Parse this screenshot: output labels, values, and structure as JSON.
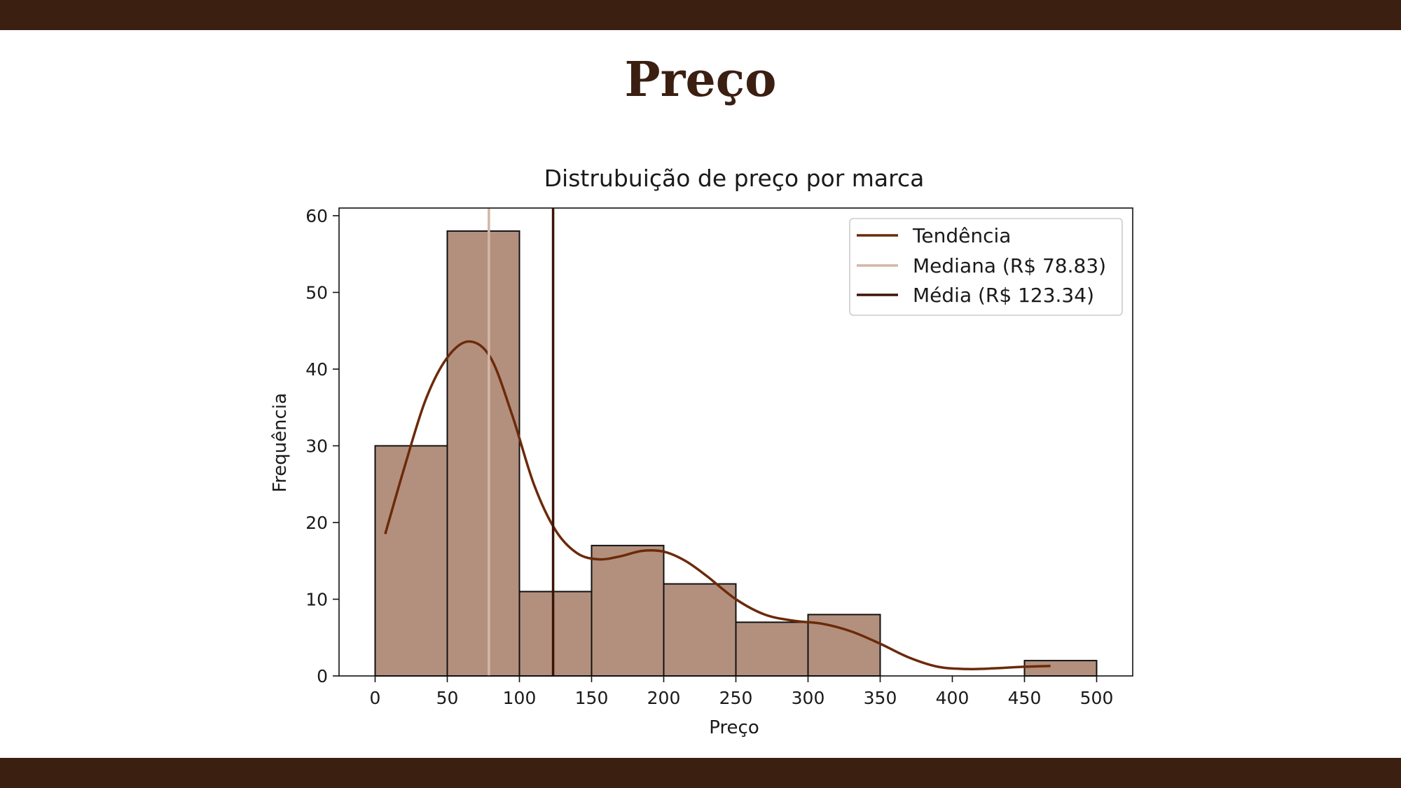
{
  "slide": {
    "title": "Preço"
  },
  "chart_data": {
    "type": "bar",
    "title": "Distrubuição de preço por marca",
    "xlabel": "Preço",
    "ylabel": "Frequência",
    "xlim": [
      -25,
      525
    ],
    "ylim": [
      0,
      61
    ],
    "xticks": [
      0,
      50,
      100,
      150,
      200,
      250,
      300,
      350,
      400,
      450,
      500
    ],
    "yticks": [
      0,
      10,
      20,
      30,
      40,
      50,
      60
    ],
    "bins": [
      {
        "start": 0,
        "end": 50,
        "count": 30
      },
      {
        "start": 50,
        "end": 100,
        "count": 58
      },
      {
        "start": 100,
        "end": 150,
        "count": 11
      },
      {
        "start": 150,
        "end": 200,
        "count": 17
      },
      {
        "start": 200,
        "end": 250,
        "count": 12
      },
      {
        "start": 250,
        "end": 300,
        "count": 7
      },
      {
        "start": 300,
        "end": 350,
        "count": 8
      },
      {
        "start": 350,
        "end": 400,
        "count": 0
      },
      {
        "start": 400,
        "end": 450,
        "count": 0
      },
      {
        "start": 450,
        "end": 500,
        "count": 2
      }
    ],
    "trend": {
      "name": "Tendência",
      "x": [
        7,
        20,
        35,
        50,
        65,
        80,
        95,
        110,
        125,
        140,
        155,
        170,
        185,
        200,
        215,
        230,
        250,
        270,
        290,
        310,
        330,
        350,
        370,
        390,
        410,
        430,
        450,
        468
      ],
      "y": [
        18.5,
        27,
        36,
        41.5,
        43.6,
        41.5,
        34,
        25,
        19,
        16,
        15.2,
        15.6,
        16.3,
        16.2,
        15,
        13,
        10,
        8,
        7.2,
        6.8,
        5.8,
        4.2,
        2.4,
        1.2,
        0.9,
        1.0,
        1.2,
        1.3
      ],
      "color": "#6b2a0a"
    },
    "median": {
      "name": "Mediana (R$ 78.83)",
      "value": 78.83,
      "color": "#d4b6a6"
    },
    "mean": {
      "name": "Média (R$ 123.34)",
      "value": 123.34,
      "color": "#3b1407"
    },
    "bar_fill": "#b3907e",
    "bar_edge": "#111111",
    "legend_position": "top-right",
    "grid": false
  }
}
